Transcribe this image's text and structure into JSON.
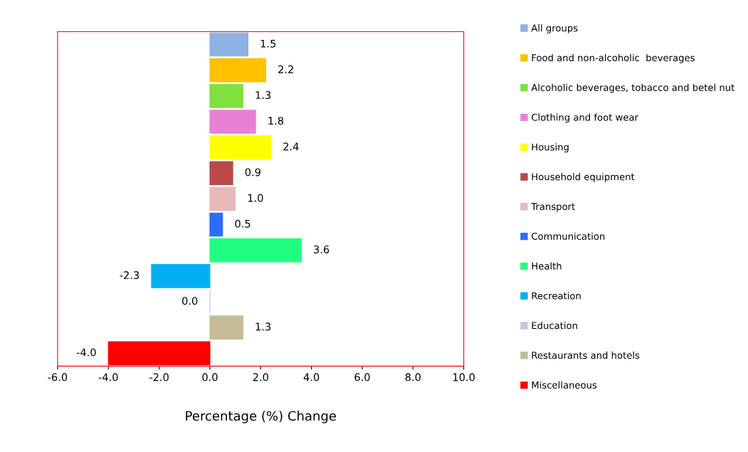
{
  "chart_data": {
    "type": "bar",
    "orientation": "horizontal",
    "xlabel": "Percentage (%) Change",
    "categories": [
      null,
      null,
      null,
      null,
      null,
      null,
      null,
      null,
      null,
      null,
      null,
      null,
      null
    ],
    "series": [
      {
        "name": "All groups",
        "color": "#8db3e2",
        "values": [
          1.5,
          null,
          null,
          null,
          null,
          null,
          null,
          null,
          null,
          null,
          null,
          null,
          null
        ],
        "value_labels": [
          "1.5",
          null,
          null,
          null,
          null,
          null,
          null,
          null,
          null,
          null,
          null,
          null,
          null
        ]
      },
      {
        "name": "Food and non-alcoholic  beverages",
        "color": "#ffc000",
        "values": [
          null,
          2.2,
          null,
          null,
          null,
          null,
          null,
          null,
          null,
          null,
          null,
          null,
          null
        ],
        "value_labels": [
          null,
          "2.2",
          null,
          null,
          null,
          null,
          null,
          null,
          null,
          null,
          null,
          null,
          null
        ]
      },
      {
        "name": "Alcoholic beverages, tobacco and betel nut",
        "color": "#80e040",
        "values": [
          null,
          null,
          1.3,
          null,
          null,
          null,
          null,
          null,
          null,
          null,
          null,
          null,
          null
        ],
        "value_labels": [
          null,
          null,
          "1.3",
          null,
          null,
          null,
          null,
          null,
          null,
          null,
          null,
          null,
          null
        ]
      },
      {
        "name": "Clothing and foot wear",
        "color": "#e880d4",
        "values": [
          null,
          null,
          null,
          1.8,
          null,
          null,
          null,
          null,
          null,
          null,
          null,
          null,
          null
        ],
        "value_labels": [
          null,
          null,
          null,
          "1.8",
          null,
          null,
          null,
          null,
          null,
          null,
          null,
          null,
          null
        ]
      },
      {
        "name": "Housing",
        "color": "#ffff00",
        "values": [
          null,
          null,
          null,
          null,
          2.4,
          null,
          null,
          null,
          null,
          null,
          null,
          null,
          null
        ],
        "value_labels": [
          null,
          null,
          null,
          null,
          "2.4",
          null,
          null,
          null,
          null,
          null,
          null,
          null,
          null
        ]
      },
      {
        "name": "Household equipment",
        "color": "#b94a48",
        "values": [
          null,
          null,
          null,
          null,
          null,
          0.9,
          null,
          null,
          null,
          null,
          null,
          null,
          null
        ],
        "value_labels": [
          null,
          null,
          null,
          null,
          null,
          "0.9",
          null,
          null,
          null,
          null,
          null,
          null,
          null
        ]
      },
      {
        "name": "Transport",
        "color": "#e6b9b8",
        "values": [
          null,
          null,
          null,
          null,
          null,
          null,
          1.0,
          null,
          null,
          null,
          null,
          null,
          null
        ],
        "value_labels": [
          null,
          null,
          null,
          null,
          null,
          null,
          "1.0",
          null,
          null,
          null,
          null,
          null,
          null
        ]
      },
      {
        "name": "Communication",
        "color": "#2b6cff",
        "values": [
          null,
          null,
          null,
          null,
          null,
          null,
          null,
          0.5,
          null,
          null,
          null,
          null,
          null
        ],
        "value_labels": [
          null,
          null,
          null,
          null,
          null,
          null,
          null,
          "0.5",
          null,
          null,
          null,
          null,
          null
        ]
      },
      {
        "name": "Health",
        "color": "#20ff80",
        "values": [
          null,
          null,
          null,
          null,
          null,
          null,
          null,
          null,
          3.6,
          null,
          null,
          null,
          null
        ],
        "value_labels": [
          null,
          null,
          null,
          null,
          null,
          null,
          null,
          null,
          "3.6",
          null,
          null,
          null,
          null
        ]
      },
      {
        "name": "Recreation",
        "color": "#00b0f0",
        "values": [
          null,
          null,
          null,
          null,
          null,
          null,
          null,
          null,
          null,
          -2.3,
          null,
          null,
          null
        ],
        "value_labels": [
          null,
          null,
          null,
          null,
          null,
          null,
          null,
          null,
          null,
          "-2.3",
          null,
          null,
          null
        ]
      },
      {
        "name": "Education",
        "color": "#ccc0da",
        "values": [
          null,
          null,
          null,
          null,
          null,
          null,
          null,
          null,
          null,
          null,
          0.0,
          null,
          null
        ],
        "value_labels": [
          null,
          null,
          null,
          null,
          null,
          null,
          null,
          null,
          null,
          null,
          "0.0",
          null,
          null
        ]
      },
      {
        "name": "Restaurants and hotels",
        "color": "#c4bd97",
        "values": [
          null,
          null,
          null,
          null,
          null,
          null,
          null,
          null,
          null,
          null,
          null,
          1.3,
          null
        ],
        "value_labels": [
          null,
          null,
          null,
          null,
          null,
          null,
          null,
          null,
          null,
          null,
          null,
          "1.3",
          null
        ]
      },
      {
        "name": "Miscellaneous",
        "color": "#ff0000",
        "values": [
          null,
          null,
          null,
          null,
          null,
          null,
          null,
          null,
          null,
          null,
          null,
          null,
          -4.0
        ],
        "value_labels": [
          null,
          null,
          null,
          null,
          null,
          null,
          null,
          null,
          null,
          null,
          null,
          null,
          "-4.0"
        ]
      }
    ],
    "xlim": [
      -6,
      10
    ],
    "xticks": [
      {
        "value": -6,
        "label": "-6.0"
      },
      {
        "value": -4,
        "label": "-4.0"
      },
      {
        "value": -2,
        "label": "-2.0"
      },
      {
        "value": 0,
        "label": "0.0"
      },
      {
        "value": 2,
        "label": "2.0"
      },
      {
        "value": 4,
        "label": "4.0"
      },
      {
        "value": 6,
        "label": "6.0"
      },
      {
        "value": 8,
        "label": "8.0"
      },
      {
        "value": 10,
        "label": "10.0"
      }
    ],
    "tick_labels": "x",
    "legend": "right",
    "grid": false
  }
}
